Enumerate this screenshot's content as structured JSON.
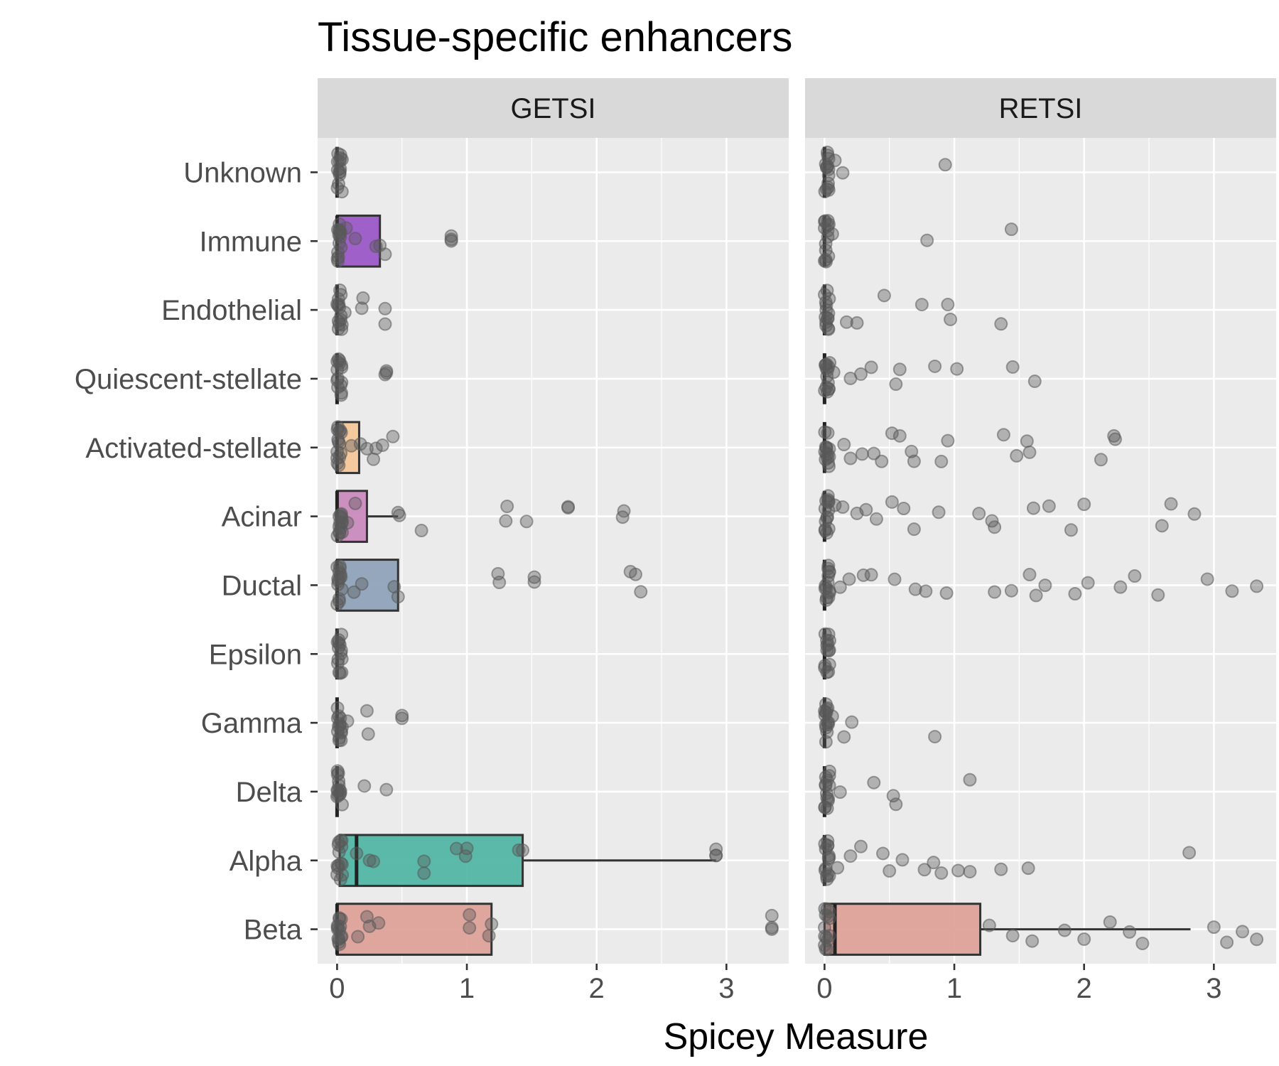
{
  "chart_data": {
    "type": "boxplot",
    "title": "Tissue-specific enhancers",
    "xlabel": "Spicey Measure",
    "ylabel": "",
    "xlim": [
      -0.15,
      3.48
    ],
    "xticks": [
      0,
      1,
      2,
      3
    ],
    "grid": true,
    "legend": "none",
    "categories": [
      "Unknown",
      "Immune",
      "Endothelial",
      "Quiescent-stellate",
      "Activated-stellate",
      "Acinar",
      "Ductal",
      "Epsilon",
      "Gamma",
      "Delta",
      "Alpha",
      "Beta"
    ],
    "colors": {
      "Immune": "#9b59c8",
      "Activated-stellate": "#f6c79a",
      "Acinar": "#c98bbe",
      "Ductal": "#8fa3ba",
      "Alpha": "#52b6a4",
      "Beta": "#dea29a",
      "point": "#595959",
      "panel_bg": "#ebebeb",
      "strip_bg": "#d9d9d9",
      "box_outline": "#333333"
    },
    "panels": [
      {
        "name": "GETSI",
        "boxes": [
          {
            "category": "Unknown",
            "q1": 0,
            "median": 0,
            "q3": 0,
            "whisker_low": 0,
            "whisker_high": 0
          },
          {
            "category": "Immune",
            "q1": 0,
            "median": 0,
            "q3": 0.33,
            "whisker_low": 0,
            "whisker_high": 0.33
          },
          {
            "category": "Endothelial",
            "q1": 0,
            "median": 0,
            "q3": 0,
            "whisker_low": 0,
            "whisker_high": 0
          },
          {
            "category": "Quiescent-stellate",
            "q1": 0,
            "median": 0,
            "q3": 0,
            "whisker_low": 0,
            "whisker_high": 0
          },
          {
            "category": "Activated-stellate",
            "q1": 0,
            "median": 0,
            "q3": 0.17,
            "whisker_low": 0,
            "whisker_high": 0.17
          },
          {
            "category": "Acinar",
            "q1": 0,
            "median": 0,
            "q3": 0.23,
            "whisker_low": 0,
            "whisker_high": 0.47
          },
          {
            "category": "Ductal",
            "q1": 0,
            "median": 0,
            "q3": 0.47,
            "whisker_low": 0,
            "whisker_high": 0.47
          },
          {
            "category": "Epsilon",
            "q1": 0,
            "median": 0,
            "q3": 0,
            "whisker_low": 0,
            "whisker_high": 0
          },
          {
            "category": "Gamma",
            "q1": 0,
            "median": 0,
            "q3": 0,
            "whisker_low": 0,
            "whisker_high": 0
          },
          {
            "category": "Delta",
            "q1": 0,
            "median": 0,
            "q3": 0,
            "whisker_low": 0,
            "whisker_high": 0
          },
          {
            "category": "Alpha",
            "q1": 0.02,
            "median": 0.15,
            "q3": 1.43,
            "whisker_low": 0,
            "whisker_high": 2.92
          },
          {
            "category": "Beta",
            "q1": 0,
            "median": 0,
            "q3": 1.19,
            "whisker_low": 0,
            "whisker_high": 1.19
          }
        ],
        "points": [
          {
            "category": "Immune",
            "values": [
              0.07,
              0.14,
              0.3,
              0.33,
              0.37,
              0.88,
              0.88,
              0.88
            ]
          },
          {
            "category": "Endothelial",
            "values": [
              0.06,
              0.19,
              0.2,
              0.37,
              0.37
            ]
          },
          {
            "category": "Quiescent-stellate",
            "values": [
              0.37,
              0.38,
              0.38
            ]
          },
          {
            "category": "Activated-stellate",
            "values": [
              0.11,
              0.18,
              0.23,
              0.28,
              0.3,
              0.35,
              0.43
            ]
          },
          {
            "category": "Acinar",
            "values": [
              0.08,
              0.14,
              0.47,
              0.48,
              0.65,
              1.3,
              1.31,
              1.46,
              1.78,
              1.78,
              2.2,
              2.21
            ]
          },
          {
            "category": "Ductal",
            "values": [
              0.13,
              0.19,
              0.44,
              0.47,
              1.24,
              1.25,
              1.52,
              1.52,
              2.26,
              2.3,
              2.34
            ]
          },
          {
            "category": "Gamma",
            "values": [
              0.08,
              0.23,
              0.24,
              0.5,
              0.5
            ]
          },
          {
            "category": "Delta",
            "values": [
              0.21,
              0.38
            ]
          },
          {
            "category": "Alpha",
            "values": [
              0.15,
              0.25,
              0.28,
              0.67,
              0.67,
              0.92,
              0.99,
              1.0,
              1.4,
              1.43,
              2.92,
              2.92,
              2.92
            ]
          },
          {
            "category": "Beta",
            "values": [
              0.16,
              0.23,
              0.25,
              0.32,
              1.02,
              1.02,
              1.17,
              1.19,
              3.35,
              3.35,
              3.35
            ]
          }
        ]
      },
      {
        "name": "RETSI",
        "boxes": [
          {
            "category": "Unknown",
            "q1": 0,
            "median": 0,
            "q3": 0,
            "whisker_low": 0,
            "whisker_high": 0
          },
          {
            "category": "Immune",
            "q1": 0,
            "median": 0,
            "q3": 0,
            "whisker_low": 0,
            "whisker_high": 0
          },
          {
            "category": "Endothelial",
            "q1": 0,
            "median": 0,
            "q3": 0,
            "whisker_low": 0,
            "whisker_high": 0
          },
          {
            "category": "Quiescent-stellate",
            "q1": 0,
            "median": 0,
            "q3": 0,
            "whisker_low": 0,
            "whisker_high": 0
          },
          {
            "category": "Activated-stellate",
            "q1": 0,
            "median": 0,
            "q3": 0,
            "whisker_low": 0,
            "whisker_high": 0
          },
          {
            "category": "Acinar",
            "q1": 0,
            "median": 0,
            "q3": 0,
            "whisker_low": 0,
            "whisker_high": 0
          },
          {
            "category": "Ductal",
            "q1": 0,
            "median": 0,
            "q3": 0,
            "whisker_low": 0,
            "whisker_high": 0
          },
          {
            "category": "Epsilon",
            "q1": 0,
            "median": 0,
            "q3": 0,
            "whisker_low": 0,
            "whisker_high": 0
          },
          {
            "category": "Gamma",
            "q1": 0,
            "median": 0,
            "q3": 0,
            "whisker_low": 0,
            "whisker_high": 0
          },
          {
            "category": "Delta",
            "q1": 0,
            "median": 0,
            "q3": 0,
            "whisker_low": 0,
            "whisker_high": 0
          },
          {
            "category": "Alpha",
            "q1": 0,
            "median": 0,
            "q3": 0,
            "whisker_low": 0,
            "whisker_high": 0
          },
          {
            "category": "Beta",
            "q1": 0,
            "median": 0.08,
            "q3": 1.2,
            "whisker_low": 0,
            "whisker_high": 2.82
          }
        ],
        "points": [
          {
            "category": "Unknown",
            "values": [
              0.08,
              0.14,
              0.93
            ]
          },
          {
            "category": "Immune",
            "values": [
              0.06,
              0.79,
              1.44
            ]
          },
          {
            "category": "Endothelial",
            "values": [
              0.17,
              0.25,
              0.46,
              0.75,
              0.95,
              0.97,
              1.36
            ]
          },
          {
            "category": "Quiescent-stellate",
            "values": [
              0.07,
              0.2,
              0.28,
              0.36,
              0.55,
              0.58,
              0.85,
              1.02,
              1.45,
              1.62
            ]
          },
          {
            "category": "Activated-stellate",
            "values": [
              0.15,
              0.2,
              0.29,
              0.38,
              0.44,
              0.52,
              0.58,
              0.67,
              0.69,
              0.9,
              0.95,
              1.38,
              1.48,
              1.56,
              1.58,
              2.13,
              2.23,
              2.24
            ]
          },
          {
            "category": "Acinar",
            "values": [
              0.08,
              0.14,
              0.25,
              0.32,
              0.4,
              0.52,
              0.61,
              0.69,
              0.88,
              1.19,
              1.29,
              1.31,
              1.61,
              1.73,
              1.9,
              2.0,
              2.6,
              2.67,
              2.85
            ]
          },
          {
            "category": "Ductal",
            "values": [
              0.12,
              0.19,
              0.3,
              0.36,
              0.54,
              0.7,
              0.78,
              0.94,
              1.31,
              1.44,
              1.58,
              1.63,
              1.7,
              1.93,
              2.03,
              2.28,
              2.39,
              2.57,
              2.95,
              3.14,
              3.33
            ]
          },
          {
            "category": "Gamma",
            "values": [
              0.06,
              0.15,
              0.21,
              0.85
            ]
          },
          {
            "category": "Delta",
            "values": [
              0.12,
              0.38,
              0.53,
              0.55,
              1.12
            ]
          },
          {
            "category": "Alpha",
            "values": [
              0.1,
              0.2,
              0.28,
              0.45,
              0.5,
              0.6,
              0.77,
              0.84,
              0.9,
              1.03,
              1.12,
              1.36,
              1.57,
              2.81
            ]
          },
          {
            "category": "Beta",
            "values": [
              1.27,
              1.45,
              1.6,
              1.85,
              2.0,
              2.2,
              2.35,
              2.45,
              3.0,
              3.1,
              3.22,
              3.33
            ]
          }
        ]
      }
    ]
  }
}
